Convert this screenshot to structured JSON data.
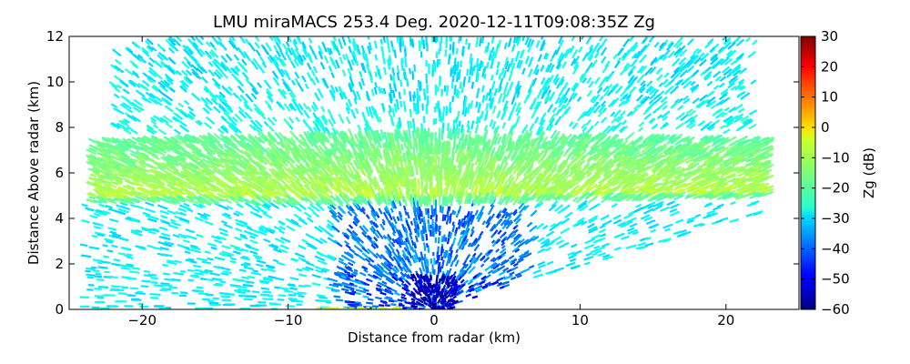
{
  "chart_data": {
    "type": "heatmap",
    "title": "LMU miraMACS 253.4 Deg. 2020-12-11T09:08:35Z  Zg",
    "xlabel": "Distance from radar (km)",
    "ylabel": "Distance Above radar  (km)",
    "xlim": [
      -25,
      25
    ],
    "ylim": [
      0,
      12
    ],
    "xticks": [
      "−20",
      "−10",
      "0",
      "10",
      "20"
    ],
    "xtick_values": [
      -20,
      -10,
      0,
      10,
      20
    ],
    "yticks": [
      "0",
      "2",
      "4",
      "6",
      "8",
      "10",
      "12"
    ],
    "ytick_values": [
      0,
      2,
      4,
      6,
      8,
      10,
      12
    ],
    "grid": false,
    "colorbar": {
      "label": "Zg (dB)",
      "range": [
        -60,
        30
      ],
      "ticks": [
        "−60",
        "−50",
        "−40",
        "−30",
        "−20",
        "−10",
        "0",
        "10",
        "20",
        "30"
      ],
      "tick_values": [
        -60,
        -50,
        -40,
        -30,
        -20,
        -10,
        0,
        10,
        20,
        30
      ],
      "colormap": "jet"
    },
    "regions": [
      {
        "description": "cloud layer core",
        "x_range": [
          -23.5,
          23
        ],
        "height_range": [
          4.7,
          7.8
        ],
        "zg_dB": -12
      },
      {
        "description": "sparse ice/noise above cloud",
        "x_range": [
          -22,
          22
        ],
        "height_range": [
          7.8,
          12
        ],
        "zg_dB": -27
      },
      {
        "description": "sparse echoes below cloud, sides",
        "x_range": [
          -24,
          23
        ],
        "height_range": [
          0,
          4.7
        ],
        "zg_dB": -27
      },
      {
        "description": "near-radar weak echoes",
        "x_range": [
          -6,
          6
        ],
        "height_range": [
          0,
          4.5
        ],
        "zg_dB": -40
      },
      {
        "description": "near-radar clutter",
        "x_range": [
          -1.5,
          1.5
        ],
        "height_range": [
          0,
          1.5
        ],
        "zg_dB": -55
      }
    ]
  }
}
